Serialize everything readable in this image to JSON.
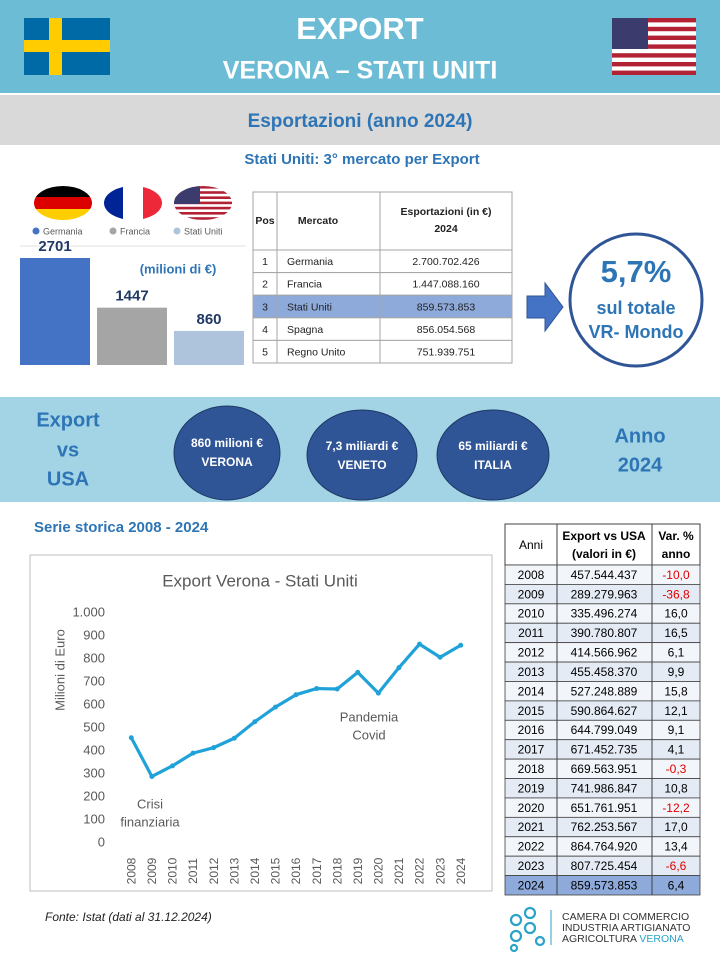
{
  "header": {
    "title": "EXPORT",
    "subtitle": "VERONA – STATI UNITI"
  },
  "section_title": "Esportazioni (anno 2024)",
  "market_title": "Stati Uniti: 3° mercato per Export",
  "chart_data": [
    {
      "type": "bar",
      "categories": [
        "Germania",
        "Francia",
        "Stati Uniti"
      ],
      "values": [
        2701,
        1447,
        860
      ],
      "colors": [
        "#4472c4",
        "#a5a5a5",
        "#adc4dc"
      ],
      "annotation": "(milioni di €)"
    },
    {
      "type": "line",
      "title": "Export Verona - Stati Uniti",
      "y_label": "Milioni di Euro",
      "categories": [
        "2008",
        "2009",
        "2010",
        "2011",
        "2012",
        "2013",
        "2014",
        "2015",
        "2016",
        "2017",
        "2018",
        "2019",
        "2020",
        "2021",
        "2022",
        "2023",
        "2024"
      ],
      "values": [
        457.5,
        289.3,
        335.5,
        390.8,
        414.6,
        455.5,
        527.2,
        590.9,
        644.8,
        671.5,
        669.6,
        742.0,
        651.8,
        762.3,
        864.8,
        807.7,
        859.6
      ],
      "color": "#1fa2d8",
      "ylim": [
        0,
        1000
      ],
      "yticks": [
        0,
        100,
        200,
        300,
        400,
        500,
        600,
        700,
        800,
        900,
        {
          "value": 1000,
          "label": "1.000"
        }
      ],
      "grid": false,
      "annotations": [
        [
          "Crisi",
          "finanziaria"
        ],
        [
          "Pandemia",
          "Covid"
        ]
      ]
    }
  ],
  "ranking_table": {
    "columns": [
      [
        "Pos"
      ],
      [
        "Mercato"
      ],
      [
        "Esportazioni (in €)",
        "2024"
      ]
    ],
    "rows": [
      [
        "1",
        "Germania",
        "2.700.702.426"
      ],
      [
        "2",
        "Francia",
        "1.447.088.160"
      ],
      [
        "3",
        "Stati  Uniti",
        "859.573.853"
      ],
      [
        "4",
        "Spagna",
        "856.054.568"
      ],
      [
        "5",
        "Regno Unito",
        "751.939.751"
      ]
    ],
    "highlight_row": 2
  },
  "share": {
    "value": "5,7%",
    "lines": [
      "sul totale",
      "VR- Mondo"
    ]
  },
  "comparison": {
    "label": [
      "Export",
      "vs",
      "USA"
    ],
    "bubbles": [
      [
        "860 milioni €",
        "VERONA"
      ],
      [
        "7,3 miliardi €",
        "VENETO"
      ],
      [
        "65 miliardi €",
        "ITALIA"
      ]
    ],
    "year": [
      "Anno",
      "2024"
    ]
  },
  "series_title": "Serie storica 2008 - 2024",
  "history_table": {
    "columns": [
      [
        "Anni"
      ],
      [
        "Export vs USA",
        "(valori in €)"
      ],
      [
        "Var. %",
        "anno"
      ]
    ],
    "rows": [
      [
        "2008",
        "457.544.437",
        "-10,0"
      ],
      [
        "2009",
        "289.279.963",
        "-36,8"
      ],
      [
        "2010",
        "335.496.274",
        "16,0"
      ],
      [
        "2011",
        "390.780.807",
        "16,5"
      ],
      [
        "2012",
        "414.566.962",
        "6,1"
      ],
      [
        "2013",
        "455.458.370",
        "9,9"
      ],
      [
        "2014",
        "527.248.889",
        "15,8"
      ],
      [
        "2015",
        "590.864.627",
        "12,1"
      ],
      [
        "2016",
        "644.799.049",
        "9,1"
      ],
      [
        "2017",
        "671.452.735",
        "4,1"
      ],
      [
        "2018",
        "669.563.951",
        "-0,3"
      ],
      [
        "2019",
        "741.986.847",
        "10,8"
      ],
      [
        "2020",
        "651.761.951",
        "-12,2"
      ],
      [
        "2021",
        "762.253.567",
        "17,0"
      ],
      [
        "2022",
        "864.764.920",
        "13,4"
      ],
      [
        "2023",
        "807.725.454",
        "-6,6"
      ],
      [
        "2024",
        "859.573.853",
        "6,4"
      ]
    ],
    "highlight_row": 16
  },
  "source": "Fonte: Istat (dati al 31.12.2024)",
  "logo": {
    "lines": [
      "CAMERA DI COMMERCIO",
      "INDUSTRIA ARTIGIANATO"
    ],
    "line3": "AGRICOLTURA",
    "accent": "VERONA"
  }
}
